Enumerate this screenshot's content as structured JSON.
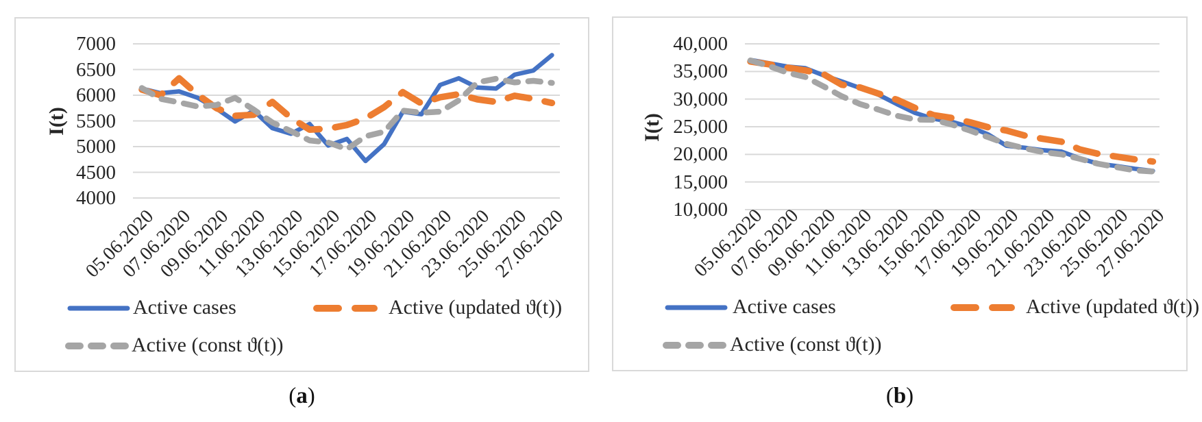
{
  "figure": {
    "captions": [
      {
        "open": "(",
        "letter": "a",
        "close": ")"
      },
      {
        "open": "(",
        "letter": "b",
        "close": ")"
      }
    ]
  },
  "chart_data": [
    {
      "type": "line",
      "title": "",
      "xlabel": "",
      "ylabel": "I(t)",
      "ylim": [
        4000,
        7000
      ],
      "yticks": [
        7000,
        6500,
        6000,
        5500,
        5000,
        4500,
        4000
      ],
      "ytick_labels": [
        "7000",
        "6500",
        "6000",
        "5500",
        "5000",
        "4500",
        "4000"
      ],
      "x": [
        "05.06.2020",
        "06.06.2020",
        "07.06.2020",
        "08.06.2020",
        "09.06.2020",
        "10.06.2020",
        "11.06.2020",
        "12.06.2020",
        "13.06.2020",
        "14.06.2020",
        "15.06.2020",
        "16.06.2020",
        "17.06.2020",
        "18.06.2020",
        "19.06.2020",
        "20.06.2020",
        "21.06.2020",
        "22.06.2020",
        "23.06.2020",
        "24.06.2020",
        "25.06.2020",
        "26.06.2020",
        "27.06.2020"
      ],
      "x_tick_labels": [
        "05.06.2020",
        "07.06.2020",
        "09.06.2020",
        "11.06.2020",
        "13.06.2020",
        "15.06.2020",
        "17.06.2020",
        "19.06.2020",
        "21.06.2020",
        "23.06.2020",
        "25.06.2020",
        "27.06.2020"
      ],
      "grid": true,
      "gridline_color": "#d9d9d9",
      "legend_position": "bottom",
      "series": [
        {
          "name": "Active cases",
          "color": "#4472c4",
          "dash": "solid",
          "values": [
            6130,
            6040,
            6075,
            5950,
            5740,
            5490,
            5700,
            5360,
            5250,
            5440,
            5020,
            5150,
            4720,
            5050,
            5680,
            5630,
            6200,
            6330,
            6150,
            6130,
            6400,
            6480,
            6780
          ]
        },
        {
          "name": "Active (updated ϑ(t))",
          "color": "#ed7d31",
          "dash": "long-dash",
          "values": [
            6110,
            6000,
            6330,
            6010,
            5750,
            5600,
            5620,
            5870,
            5560,
            5330,
            5350,
            5420,
            5550,
            5770,
            6060,
            5840,
            5960,
            6020,
            5920,
            5870,
            5990,
            5930,
            5850
          ]
        },
        {
          "name": "Active (const ϑ(t))",
          "color": "#a5a5a5",
          "dash": "dash",
          "values": [
            6140,
            5930,
            5860,
            5780,
            5810,
            5950,
            5720,
            5470,
            5300,
            5120,
            5080,
            4950,
            5200,
            5290,
            5700,
            5660,
            5680,
            5900,
            6250,
            6320,
            6250,
            6280,
            6240
          ]
        }
      ]
    },
    {
      "type": "line",
      "title": "",
      "xlabel": "",
      "ylabel": "I(t)",
      "ylim": [
        10000,
        40000
      ],
      "yticks": [
        40000,
        35000,
        30000,
        25000,
        20000,
        15000,
        10000
      ],
      "ytick_labels": [
        "40,000",
        "35,000",
        "30,000",
        "25,000",
        "20,000",
        "15,000",
        "10,000"
      ],
      "x": [
        "05.06.2020",
        "06.06.2020",
        "07.06.2020",
        "08.06.2020",
        "09.06.2020",
        "10.06.2020",
        "11.06.2020",
        "12.06.2020",
        "13.06.2020",
        "14.06.2020",
        "15.06.2020",
        "16.06.2020",
        "17.06.2020",
        "18.06.2020",
        "19.06.2020",
        "20.06.2020",
        "21.06.2020",
        "22.06.2020",
        "23.06.2020",
        "24.06.2020",
        "25.06.2020",
        "26.06.2020",
        "27.06.2020"
      ],
      "x_tick_labels": [
        "05.06.2020",
        "07.06.2020",
        "09.06.2020",
        "11.06.2020",
        "13.06.2020",
        "15.06.2020",
        "17.06.2020",
        "19.06.2020",
        "21.06.2020",
        "23.06.2020",
        "25.06.2020",
        "27.06.2020"
      ],
      "grid": true,
      "gridline_color": "#d9d9d9",
      "legend_position": "bottom",
      "series": [
        {
          "name": "Active cases",
          "color": "#4472c4",
          "dash": "solid",
          "values": [
            37100,
            36500,
            35900,
            35600,
            34300,
            33200,
            32000,
            30800,
            29100,
            27500,
            26450,
            25900,
            24950,
            23600,
            21550,
            21200,
            20750,
            20500,
            19300,
            18300,
            17900,
            17400,
            17000
          ]
        },
        {
          "name": "Active (updated ϑ(t))",
          "color": "#ed7d31",
          "dash": "long-dash",
          "values": [
            36800,
            36300,
            35700,
            35200,
            34500,
            32600,
            32100,
            31000,
            29900,
            28400,
            27100,
            26600,
            25800,
            24900,
            24300,
            23400,
            22800,
            22300,
            20900,
            20100,
            19600,
            19100,
            18700
          ]
        },
        {
          "name": "Active (const ϑ(t))",
          "color": "#a5a5a5",
          "dash": "dash",
          "values": [
            37000,
            36000,
            34800,
            34000,
            32300,
            30500,
            29100,
            28100,
            27000,
            26300,
            26250,
            25400,
            24300,
            23100,
            21900,
            21100,
            20400,
            20000,
            19200,
            18300,
            17700,
            17100,
            16900
          ]
        }
      ]
    }
  ]
}
